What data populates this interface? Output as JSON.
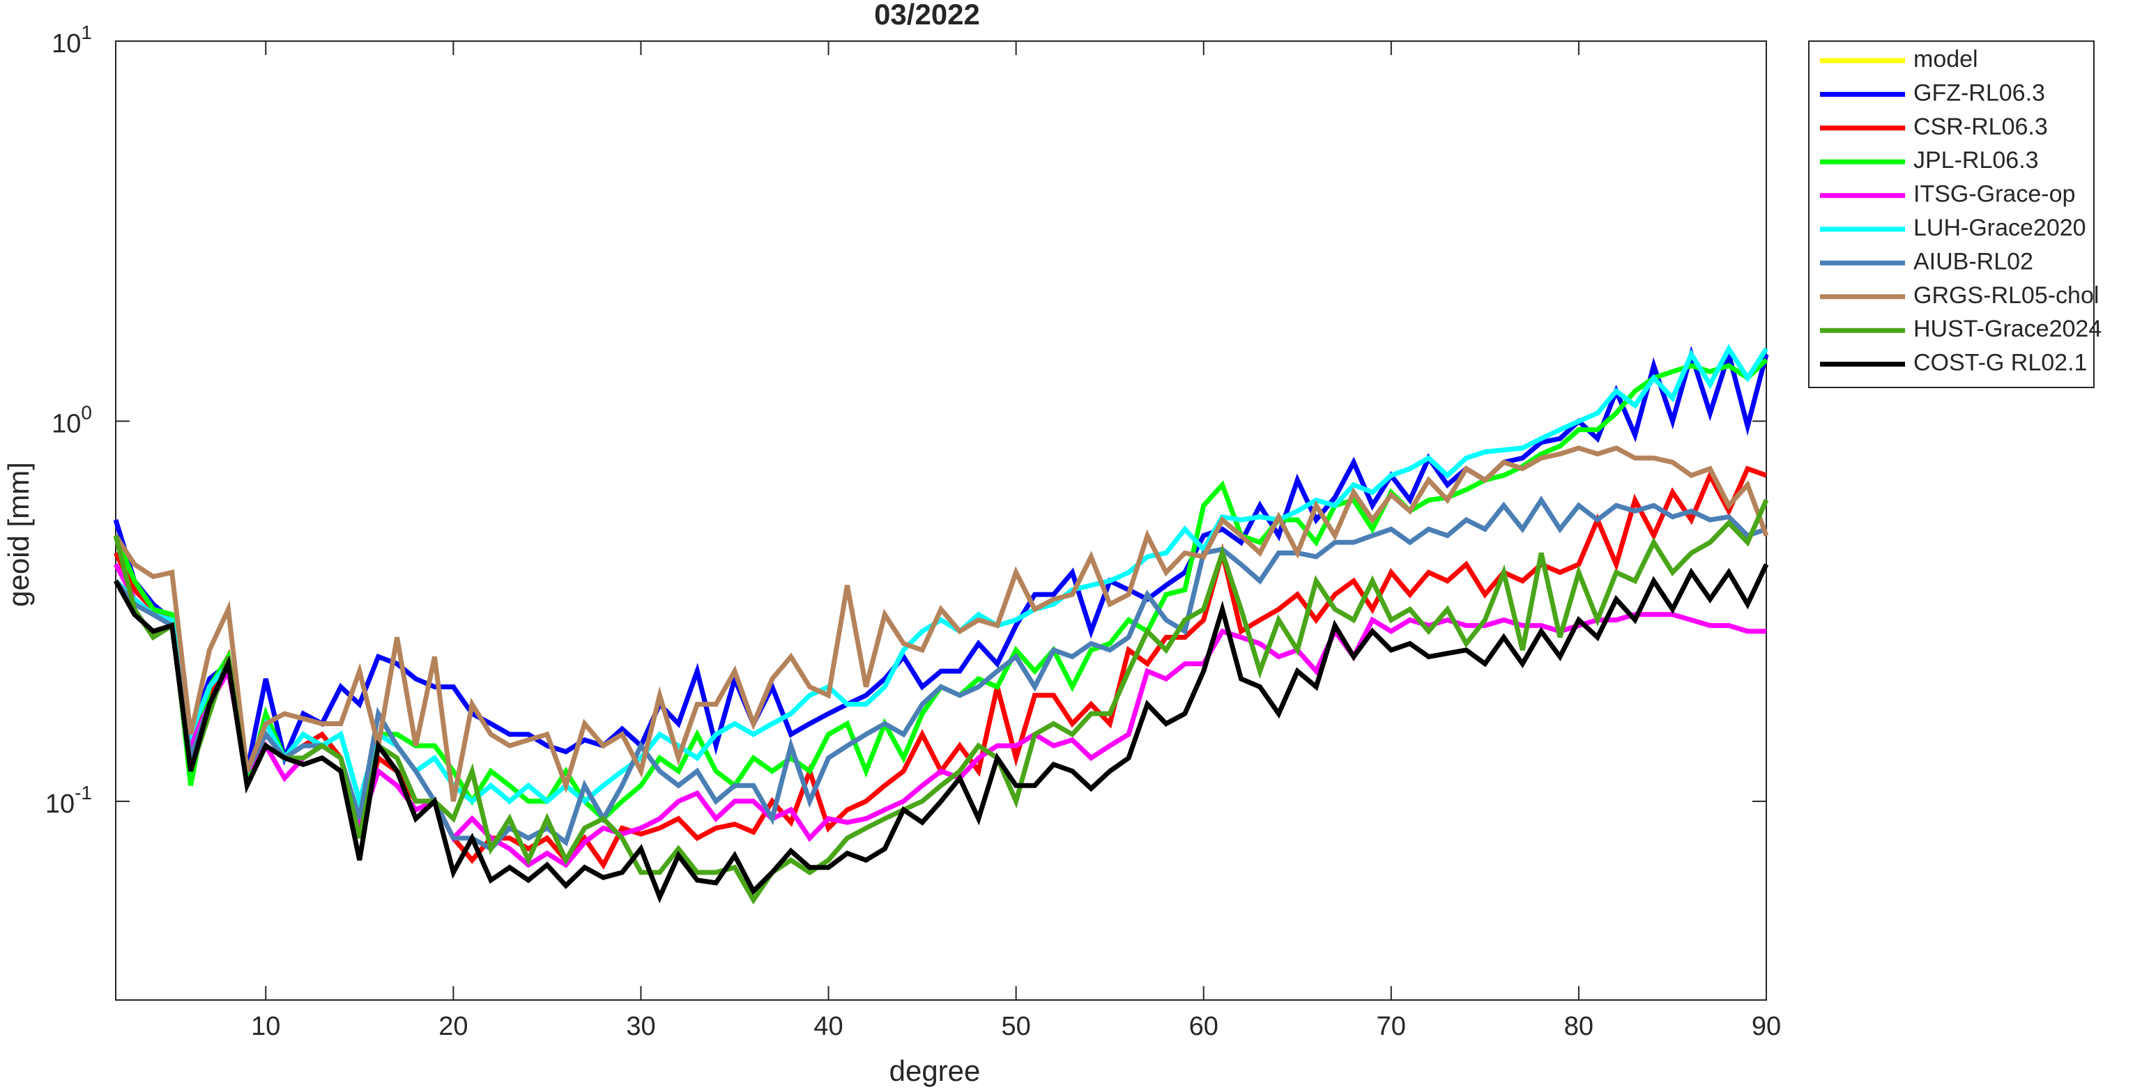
{
  "chart_data": {
    "type": "line",
    "title": "03/2022",
    "xlabel": "degree",
    "ylabel": "geoid [mm]",
    "yscale": "log",
    "xlim": [
      2,
      90
    ],
    "ylim": [
      0.03,
      10
    ],
    "xticks": [
      10,
      20,
      30,
      40,
      50,
      60,
      70,
      80,
      90
    ],
    "yticks": [
      {
        "value": 0.1,
        "label": "10",
        "exp": "-1"
      },
      {
        "value": 1,
        "label": "10",
        "exp": "0"
      },
      {
        "value": 10,
        "label": "10",
        "exp": "1"
      }
    ],
    "x": [
      2,
      3,
      4,
      5,
      6,
      7,
      8,
      9,
      10,
      11,
      12,
      13,
      14,
      15,
      16,
      17,
      18,
      19,
      20,
      21,
      22,
      23,
      24,
      25,
      26,
      27,
      28,
      29,
      30,
      31,
      32,
      33,
      34,
      35,
      36,
      37,
      38,
      39,
      40,
      41,
      42,
      43,
      44,
      45,
      46,
      47,
      48,
      49,
      50,
      51,
      52,
      53,
      54,
      55,
      56,
      57,
      58,
      59,
      60,
      61,
      62,
      63,
      64,
      65,
      66,
      67,
      68,
      69,
      70,
      71,
      72,
      73,
      74,
      75,
      76,
      77,
      78,
      79,
      80,
      81,
      82,
      83,
      84,
      85,
      86,
      87,
      88,
      89,
      90
    ],
    "series": [
      {
        "name": "model",
        "color": "#ffff00",
        "values": [
          null,
          null,
          null,
          null,
          null,
          null,
          null,
          null,
          null,
          null,
          null,
          null,
          null,
          null,
          null,
          null,
          null,
          null,
          null,
          null,
          null,
          null,
          null,
          null,
          null,
          null,
          null,
          null,
          null,
          null,
          null,
          null,
          null,
          null,
          null,
          null,
          null,
          null,
          null,
          null,
          null,
          null,
          null,
          null,
          null,
          null,
          null,
          null,
          null,
          null,
          null,
          null,
          null,
          null,
          null,
          null,
          null,
          null,
          null,
          null,
          null,
          null,
          null,
          null,
          null,
          null,
          null,
          null,
          null,
          null,
          null,
          null,
          null,
          null,
          null,
          null,
          null,
          null,
          null,
          null,
          null,
          null,
          null,
          null,
          null,
          null,
          null,
          null,
          null
        ]
      },
      {
        "name": "GFZ-RL06.3",
        "color": "#0000ff",
        "values": [
          0.55,
          0.38,
          0.33,
          0.3,
          0.15,
          0.21,
          0.23,
          0.12,
          0.21,
          0.13,
          0.17,
          0.16,
          0.2,
          0.18,
          0.24,
          0.23,
          0.21,
          0.2,
          0.2,
          0.17,
          0.16,
          0.15,
          0.15,
          0.14,
          0.135,
          0.145,
          0.14,
          0.155,
          0.14,
          0.18,
          0.16,
          0.22,
          0.14,
          0.21,
          0.16,
          0.2,
          0.15,
          0.16,
          0.17,
          0.18,
          0.19,
          0.21,
          0.24,
          0.2,
          0.22,
          0.22,
          0.26,
          0.23,
          0.29,
          0.35,
          0.35,
          0.4,
          0.28,
          0.38,
          0.36,
          0.34,
          0.37,
          0.4,
          0.5,
          0.52,
          0.48,
          0.6,
          0.5,
          0.7,
          0.55,
          0.63,
          0.78,
          0.6,
          0.72,
          0.62,
          0.8,
          0.68,
          0.75,
          0.7,
          0.78,
          0.8,
          0.88,
          0.9,
          1.0,
          0.9,
          1.2,
          0.92,
          1.4,
          1.0,
          1.5,
          1.05,
          1.5,
          0.97,
          1.5
        ]
      },
      {
        "name": "CSR-RL06.3",
        "color": "#ff0000",
        "values": [
          0.45,
          0.36,
          0.32,
          0.3,
          0.14,
          0.19,
          0.24,
          0.12,
          0.15,
          0.13,
          0.14,
          0.15,
          0.13,
          0.08,
          0.13,
          0.12,
          0.1,
          0.1,
          0.08,
          0.07,
          0.08,
          0.08,
          0.075,
          0.08,
          0.07,
          0.08,
          0.068,
          0.085,
          0.082,
          0.085,
          0.09,
          0.08,
          0.085,
          0.087,
          0.083,
          0.1,
          0.088,
          0.12,
          0.085,
          0.095,
          0.1,
          0.11,
          0.12,
          0.15,
          0.12,
          0.14,
          0.12,
          0.2,
          0.13,
          0.19,
          0.19,
          0.16,
          0.18,
          0.16,
          0.25,
          0.23,
          0.27,
          0.27,
          0.3,
          0.45,
          0.28,
          0.3,
          0.32,
          0.35,
          0.3,
          0.35,
          0.38,
          0.32,
          0.4,
          0.35,
          0.4,
          0.38,
          0.42,
          0.35,
          0.4,
          0.38,
          0.42,
          0.4,
          0.42,
          0.55,
          0.42,
          0.62,
          0.5,
          0.65,
          0.55,
          0.72,
          0.58,
          0.75,
          0.72
        ]
      },
      {
        "name": "JPL-RL06.3",
        "color": "#00ff00",
        "values": [
          0.5,
          0.38,
          0.32,
          0.31,
          0.11,
          0.2,
          0.24,
          0.11,
          0.17,
          0.13,
          0.15,
          0.14,
          0.15,
          0.1,
          0.15,
          0.15,
          0.14,
          0.14,
          0.12,
          0.1,
          0.12,
          0.11,
          0.1,
          0.1,
          0.12,
          0.1,
          0.09,
          0.1,
          0.11,
          0.13,
          0.12,
          0.15,
          0.12,
          0.11,
          0.13,
          0.12,
          0.13,
          0.12,
          0.15,
          0.16,
          0.12,
          0.16,
          0.13,
          0.17,
          0.2,
          0.19,
          0.21,
          0.2,
          0.25,
          0.22,
          0.25,
          0.2,
          0.25,
          0.26,
          0.3,
          0.28,
          0.35,
          0.36,
          0.6,
          0.68,
          0.5,
          0.48,
          0.55,
          0.55,
          0.48,
          0.6,
          0.62,
          0.52,
          0.65,
          0.58,
          0.62,
          0.63,
          0.66,
          0.7,
          0.72,
          0.76,
          0.82,
          0.86,
          0.95,
          0.95,
          1.05,
          1.2,
          1.3,
          1.35,
          1.4,
          1.35,
          1.4,
          1.3,
          1.45
        ]
      },
      {
        "name": "ITSG-Grace-op",
        "color": "#ff00ff",
        "values": [
          0.42,
          0.34,
          0.31,
          0.29,
          0.14,
          0.18,
          0.22,
          0.12,
          0.14,
          0.115,
          0.13,
          0.14,
          0.13,
          0.085,
          0.12,
          0.11,
          0.095,
          0.1,
          0.08,
          0.09,
          0.08,
          0.075,
          0.068,
          0.073,
          0.068,
          0.078,
          0.085,
          0.082,
          0.085,
          0.09,
          0.1,
          0.105,
          0.09,
          0.1,
          0.1,
          0.09,
          0.095,
          0.08,
          0.09,
          0.088,
          0.09,
          0.095,
          0.1,
          0.11,
          0.12,
          0.115,
          0.13,
          0.14,
          0.14,
          0.15,
          0.14,
          0.145,
          0.13,
          0.14,
          0.15,
          0.22,
          0.21,
          0.23,
          0.23,
          0.28,
          0.27,
          0.26,
          0.24,
          0.25,
          0.22,
          0.28,
          0.24,
          0.3,
          0.28,
          0.3,
          0.29,
          0.3,
          0.29,
          0.29,
          0.3,
          0.29,
          0.29,
          0.28,
          0.29,
          0.3,
          0.3,
          0.31,
          0.31,
          0.31,
          0.3,
          0.29,
          0.29,
          0.28,
          0.28
        ]
      },
      {
        "name": "LUH-Grace2020",
        "color": "#00ffff",
        "values": [
          0.38,
          0.34,
          0.31,
          0.3,
          0.15,
          0.2,
          0.23,
          0.12,
          0.16,
          0.13,
          0.15,
          0.14,
          0.15,
          0.1,
          0.15,
          0.14,
          0.12,
          0.13,
          0.11,
          0.1,
          0.11,
          0.1,
          0.11,
          0.1,
          0.11,
          0.1,
          0.11,
          0.12,
          0.13,
          0.15,
          0.14,
          0.13,
          0.15,
          0.16,
          0.15,
          0.16,
          0.17,
          0.19,
          0.2,
          0.18,
          0.18,
          0.2,
          0.25,
          0.28,
          0.3,
          0.28,
          0.31,
          0.29,
          0.3,
          0.32,
          0.33,
          0.36,
          0.37,
          0.38,
          0.4,
          0.44,
          0.45,
          0.52,
          0.46,
          0.56,
          0.55,
          0.56,
          0.55,
          0.58,
          0.62,
          0.6,
          0.68,
          0.65,
          0.72,
          0.75,
          0.8,
          0.72,
          0.8,
          0.83,
          0.84,
          0.85,
          0.9,
          0.95,
          1.0,
          1.05,
          1.2,
          1.1,
          1.3,
          1.15,
          1.5,
          1.25,
          1.55,
          1.3,
          1.55
        ]
      },
      {
        "name": "AIUB-RL02",
        "color": "#4a7fb5",
        "values": [
          0.38,
          0.33,
          0.31,
          0.29,
          0.13,
          0.18,
          0.23,
          0.12,
          0.15,
          0.13,
          0.14,
          0.14,
          0.13,
          0.09,
          0.17,
          0.14,
          0.12,
          0.1,
          0.08,
          0.08,
          0.075,
          0.085,
          0.08,
          0.085,
          0.078,
          0.11,
          0.09,
          0.11,
          0.14,
          0.12,
          0.11,
          0.12,
          0.1,
          0.11,
          0.11,
          0.09,
          0.14,
          0.1,
          0.13,
          0.14,
          0.15,
          0.16,
          0.15,
          0.18,
          0.2,
          0.19,
          0.2,
          0.22,
          0.24,
          0.2,
          0.25,
          0.24,
          0.26,
          0.25,
          0.27,
          0.35,
          0.3,
          0.28,
          0.45,
          0.46,
          0.42,
          0.38,
          0.45,
          0.45,
          0.44,
          0.48,
          0.48,
          0.5,
          0.52,
          0.48,
          0.52,
          0.5,
          0.55,
          0.52,
          0.6,
          0.52,
          0.62,
          0.52,
          0.6,
          0.55,
          0.6,
          0.58,
          0.6,
          0.56,
          0.58,
          0.55,
          0.56,
          0.5,
          0.52
        ]
      },
      {
        "name": "GRGS-RL05-chol",
        "color": "#b5835a",
        "values": [
          0.5,
          0.42,
          0.39,
          0.4,
          0.15,
          0.25,
          0.32,
          0.12,
          0.16,
          0.17,
          0.165,
          0.16,
          0.16,
          0.22,
          0.14,
          0.27,
          0.14,
          0.24,
          0.1,
          0.18,
          0.15,
          0.14,
          0.145,
          0.15,
          0.11,
          0.16,
          0.14,
          0.15,
          0.12,
          0.19,
          0.13,
          0.18,
          0.18,
          0.22,
          0.16,
          0.21,
          0.24,
          0.2,
          0.19,
          0.37,
          0.2,
          0.31,
          0.26,
          0.25,
          0.32,
          0.28,
          0.3,
          0.29,
          0.4,
          0.32,
          0.34,
          0.35,
          0.44,
          0.33,
          0.35,
          0.5,
          0.4,
          0.45,
          0.44,
          0.55,
          0.5,
          0.45,
          0.56,
          0.45,
          0.6,
          0.5,
          0.65,
          0.55,
          0.64,
          0.58,
          0.7,
          0.62,
          0.75,
          0.7,
          0.78,
          0.75,
          0.8,
          0.82,
          0.85,
          0.82,
          0.85,
          0.8,
          0.8,
          0.78,
          0.72,
          0.75,
          0.6,
          0.68,
          0.5
        ]
      },
      {
        "name": "HUST-Grace2024",
        "color": "#4aa619",
        "values": [
          0.5,
          0.32,
          0.27,
          0.29,
          0.12,
          0.17,
          0.24,
          0.11,
          0.14,
          0.13,
          0.13,
          0.14,
          0.13,
          0.08,
          0.14,
          0.13,
          0.1,
          0.1,
          0.09,
          0.12,
          0.075,
          0.09,
          0.07,
          0.09,
          0.07,
          0.085,
          0.09,
          0.08,
          0.065,
          0.065,
          0.075,
          0.065,
          0.065,
          0.067,
          0.055,
          0.065,
          0.07,
          0.065,
          0.07,
          0.08,
          0.085,
          0.09,
          0.095,
          0.1,
          0.11,
          0.12,
          0.14,
          0.13,
          0.1,
          0.15,
          0.16,
          0.15,
          0.17,
          0.17,
          0.22,
          0.28,
          0.25,
          0.3,
          0.32,
          0.45,
          0.32,
          0.22,
          0.3,
          0.25,
          0.38,
          0.32,
          0.3,
          0.38,
          0.3,
          0.32,
          0.28,
          0.32,
          0.26,
          0.3,
          0.4,
          0.25,
          0.45,
          0.27,
          0.4,
          0.3,
          0.4,
          0.38,
          0.48,
          0.4,
          0.45,
          0.48,
          0.54,
          0.48,
          0.62
        ]
      },
      {
        "name": "COST-G RL02.1",
        "color": "#000000",
        "values": [
          0.38,
          0.31,
          0.28,
          0.29,
          0.12,
          0.18,
          0.23,
          0.11,
          0.14,
          0.13,
          0.125,
          0.13,
          0.12,
          0.07,
          0.14,
          0.12,
          0.09,
          0.1,
          0.065,
          0.08,
          0.062,
          0.067,
          0.062,
          0.068,
          0.06,
          0.067,
          0.063,
          0.065,
          0.075,
          0.056,
          0.072,
          0.062,
          0.061,
          0.072,
          0.058,
          0.065,
          0.074,
          0.067,
          0.067,
          0.073,
          0.07,
          0.075,
          0.095,
          0.088,
          0.1,
          0.115,
          0.09,
          0.13,
          0.11,
          0.11,
          0.125,
          0.12,
          0.108,
          0.12,
          0.13,
          0.18,
          0.16,
          0.17,
          0.22,
          0.32,
          0.21,
          0.2,
          0.17,
          0.22,
          0.2,
          0.29,
          0.24,
          0.28,
          0.25,
          0.26,
          0.24,
          0.245,
          0.25,
          0.23,
          0.27,
          0.23,
          0.28,
          0.24,
          0.3,
          0.27,
          0.34,
          0.3,
          0.38,
          0.32,
          0.4,
          0.34,
          0.4,
          0.33,
          0.42
        ]
      }
    ]
  }
}
